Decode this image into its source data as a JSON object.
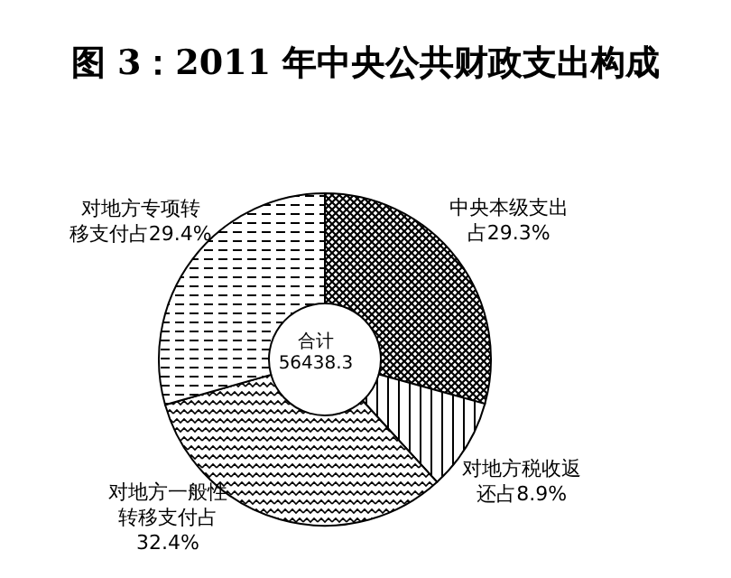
{
  "chart_data": {
    "type": "donut",
    "title": "图 3：2011 年中央公共财政支出构成",
    "categories": [
      "中央本级支出占29.3%",
      "对地方税收返还占8.9%",
      "对地方一般性转移支付占32.4%",
      "对地方专项转移支付占29.4%"
    ],
    "values": [
      29.3,
      8.9,
      32.4,
      29.4
    ],
    "colors": [
      "#000000",
      "#000000",
      "#000000",
      "#000000"
    ],
    "annotations": [
      "合计 56438.3"
    ],
    "legend": false
  }
}
